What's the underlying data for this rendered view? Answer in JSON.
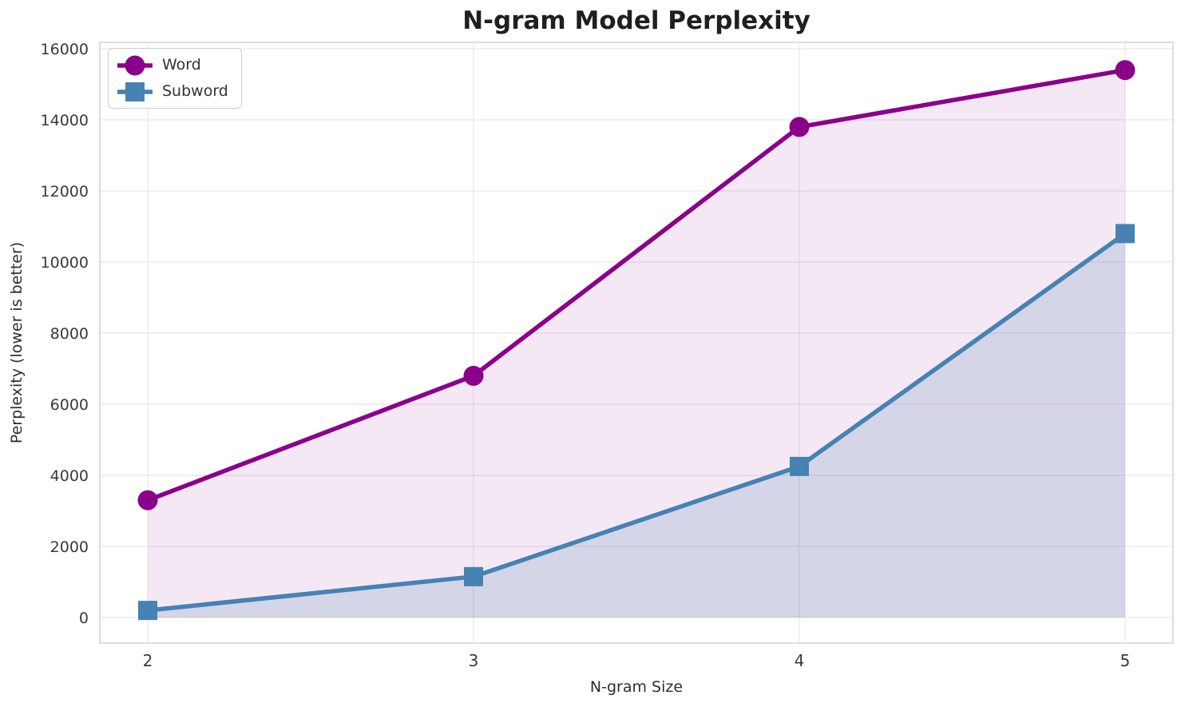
{
  "chart_data": {
    "type": "line",
    "title": "N-gram Model Perplexity",
    "xlabel": "N-gram Size",
    "ylabel": "Perplexity (lower is better)",
    "x": [
      2,
      3,
      4,
      5
    ],
    "x_tick_labels": [
      "2",
      "3",
      "4",
      "5"
    ],
    "series": [
      {
        "name": "Word",
        "marker": "circle",
        "color": "#8B008B",
        "fill_color": "rgba(139,0,139,0.09)",
        "values": [
          3300,
          6800,
          13800,
          15400
        ]
      },
      {
        "name": "Subword",
        "marker": "square",
        "color": "#4682B4",
        "fill_color": "rgba(70,130,180,0.18)",
        "values": [
          200,
          1150,
          4250,
          10800
        ]
      }
    ],
    "y_axis": {
      "ticks": [
        0,
        2000,
        4000,
        6000,
        8000,
        10000,
        12000,
        14000,
        16000
      ],
      "drawn_range": [
        -720,
        16180
      ]
    },
    "grid": true,
    "area_fill": true,
    "legend_position": "upper-left",
    "colors": {
      "grid_line": "#ebebee",
      "spine": "#d5d5da",
      "background": "#ffffff"
    }
  }
}
